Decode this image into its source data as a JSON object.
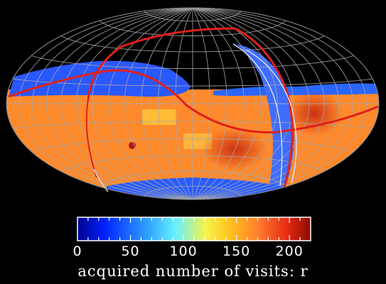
{
  "map": {
    "projection": "Aitoff-Hammer all-sky",
    "gridlines": true,
    "background": "#000000",
    "overlay_curve_color": "#e0201a",
    "grid_color": "#a8a8a8"
  },
  "colorbar": {
    "min": 0,
    "max": 220,
    "ticks": [
      "0",
      "50",
      "100",
      "150",
      "200"
    ],
    "tick_values": [
      0,
      50,
      100,
      150,
      200
    ],
    "label": "acquired number of visits: r",
    "colormap": [
      "#00008f",
      "#0024ff",
      "#2fa2ff",
      "#65f0ff",
      "#f7f34a",
      "#ffbf1f",
      "#ff7a2f",
      "#e52a12",
      "#8c0b00"
    ]
  }
}
